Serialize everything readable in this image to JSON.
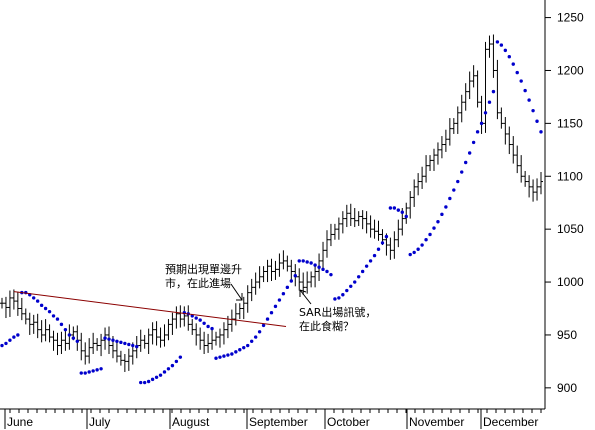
{
  "chart_data": {
    "type": "ohlc-bar",
    "overlay": "parabolic SAR (blue dots)",
    "ylim": [
      880,
      1260
    ],
    "y_ticks": [
      900,
      950,
      1000,
      1050,
      1100,
      1150,
      1200,
      1250
    ],
    "x_labels": [
      "June",
      "July",
      "August",
      "September",
      "October",
      "November",
      "December"
    ],
    "grid": false,
    "colors": {
      "price": "#000000",
      "sar": "#0000cc",
      "trendline": "#8b0000"
    },
    "price_close": [
      980,
      976,
      985,
      982,
      975,
      970,
      965,
      960,
      962,
      955,
      950,
      955,
      948,
      945,
      940,
      945,
      942,
      950,
      953,
      945,
      935,
      930,
      938,
      942,
      940,
      945,
      950,
      940,
      935,
      930,
      926,
      925,
      930,
      935,
      940,
      945,
      942,
      950,
      955,
      948,
      945,
      950,
      960,
      965,
      970,
      965,
      968,
      960,
      955,
      950,
      945,
      940,
      942,
      945,
      948,
      950,
      955,
      960,
      965,
      970,
      975,
      980,
      990,
      995,
      1000,
      1005,
      1010,
      1015,
      1010,
      1012,
      1018,
      1020,
      1015,
      1010,
      1005,
      1000,
      995,
      1000,
      1005,
      1010,
      1020,
      1030,
      1040,
      1045,
      1050,
      1055,
      1060,
      1065,
      1060,
      1058,
      1062,
      1060,
      1055,
      1050,
      1048,
      1045,
      1040,
      1035,
      1030,
      1040,
      1050,
      1060,
      1070,
      1080,
      1090,
      1095,
      1100,
      1110,
      1115,
      1120,
      1125,
      1130,
      1135,
      1145,
      1150,
      1160,
      1170,
      1180,
      1190,
      1195,
      1170,
      1150,
      1220,
      1225,
      1200,
      1160,
      1150,
      1140,
      1130,
      1120,
      1110,
      1100,
      1095,
      1090,
      1085,
      1090,
      1095
    ],
    "sar_values": [
      940,
      942,
      945,
      948,
      950,
      990,
      990,
      988,
      985,
      982,
      978,
      975,
      972,
      968,
      965,
      960,
      955,
      950,
      947,
      944,
      914,
      914,
      915,
      916,
      917,
      918,
      947,
      946,
      945,
      944,
      943,
      942,
      941,
      940,
      939,
      905,
      905,
      906,
      908,
      910,
      912,
      915,
      918,
      921,
      925,
      929,
      971,
      970,
      968,
      966,
      964,
      961,
      958,
      956,
      928,
      929,
      930,
      931,
      932,
      934,
      936,
      938,
      940,
      944,
      948,
      953,
      959,
      965,
      971,
      977,
      983,
      989,
      995,
      1001,
      1006,
      1020,
      1020,
      1019,
      1018,
      1016,
      1014,
      1012,
      1010,
      1007,
      984,
      985,
      988,
      992,
      996,
      1000,
      1005,
      1010,
      1015,
      1020,
      1025,
      1031,
      1037,
      1043,
      1070,
      1070,
      1068,
      1066,
      1062,
      1026,
      1028,
      1031,
      1035,
      1040,
      1045,
      1051,
      1057,
      1064,
      1071,
      1079,
      1087,
      1095,
      1104,
      1113,
      1122,
      1132,
      1142,
      1150,
      1160,
      1170,
      1180,
      1227,
      1224,
      1219,
      1213,
      1206,
      1198,
      1190,
      1181,
      1172,
      1162,
      1152,
      1142
    ],
    "trendline": {
      "start_value": 991,
      "end_value": 958
    },
    "annotations": [
      {
        "lines": [
          "預期出現單邊升",
          "市，在此進場"
        ]
      },
      {
        "lines": [
          "SAR出場訊號，",
          "在此食糊？"
        ]
      }
    ]
  }
}
